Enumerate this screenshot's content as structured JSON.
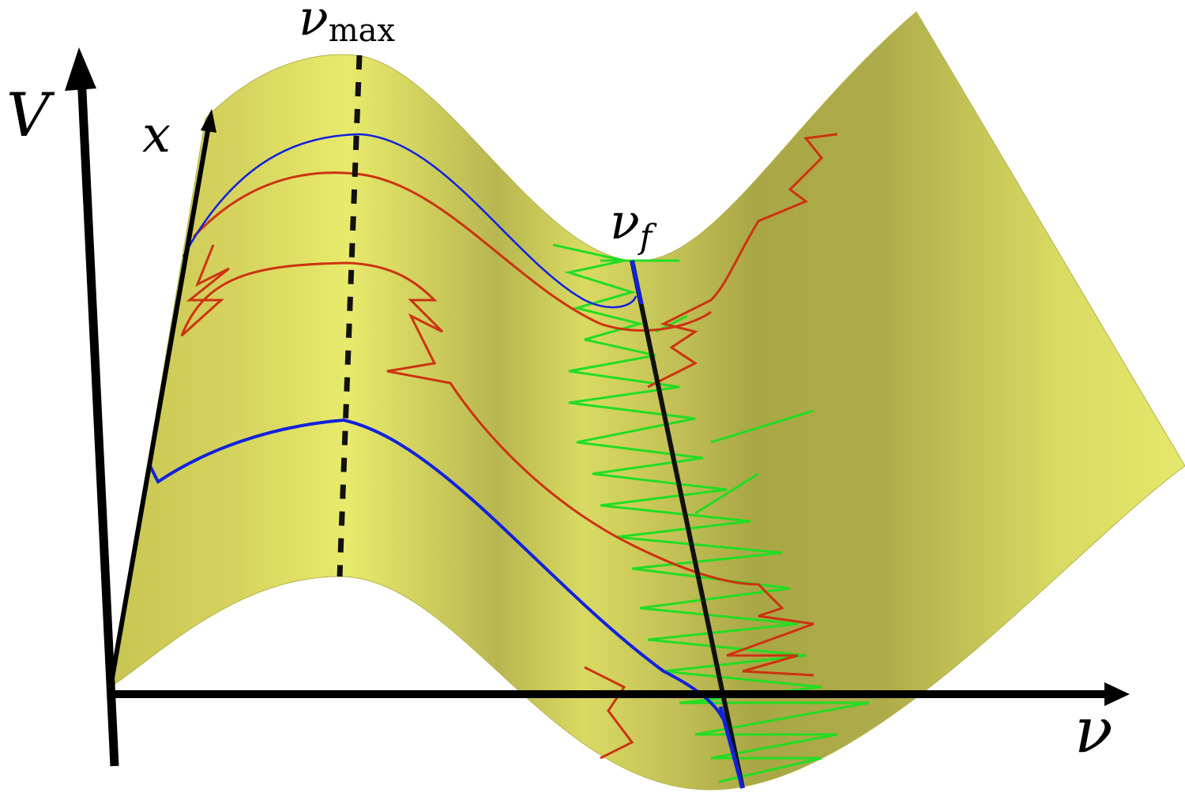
{
  "labels": {
    "v_axis": "V",
    "x_axis": "x",
    "nu_axis": "ν",
    "nu_max": {
      "base": "ν",
      "sub": "max"
    },
    "nu_f": {
      "base": "ν",
      "sub": "f"
    }
  }
}
